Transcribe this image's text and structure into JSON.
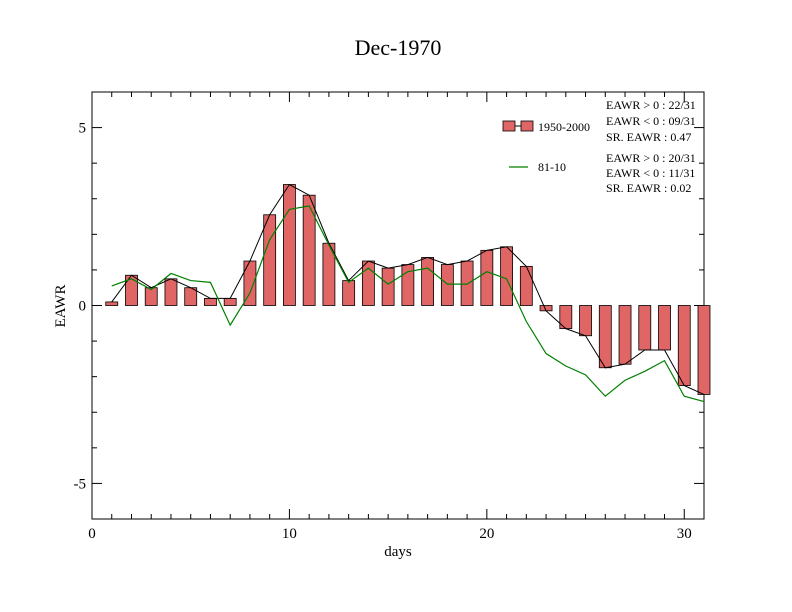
{
  "chart_data": {
    "type": "bar",
    "title": "Dec-1970",
    "xlabel": "days",
    "ylabel": "EAWR",
    "xlim": [
      0,
      31
    ],
    "ylim": [
      -6,
      6
    ],
    "x_ticks": [
      0,
      10,
      20,
      30
    ],
    "y_ticks": [
      -5,
      0,
      5
    ],
    "grid": false,
    "legend_position": "top-right",
    "series": [
      {
        "name": "1950-2000",
        "mark": "bar+line",
        "fill": "#e06666",
        "x": [
          1,
          2,
          3,
          4,
          5,
          6,
          7,
          8,
          9,
          10,
          11,
          12,
          13,
          14,
          15,
          16,
          17,
          18,
          19,
          20,
          21,
          22,
          23,
          24,
          25,
          26,
          27,
          28,
          29,
          30,
          31
        ],
        "values": [
          0.1,
          0.85,
          0.5,
          0.75,
          0.5,
          0.2,
          0.2,
          1.25,
          2.55,
          3.4,
          3.1,
          1.75,
          0.7,
          1.25,
          1.05,
          1.15,
          1.35,
          1.15,
          1.25,
          1.55,
          1.65,
          1.1,
          -0.15,
          -0.65,
          -0.85,
          -1.75,
          -1.65,
          -1.25,
          -1.25,
          -2.25,
          -2.5
        ]
      },
      {
        "name": "81-10",
        "mark": "line",
        "color": "#008000",
        "x": [
          1,
          2,
          3,
          4,
          5,
          6,
          7,
          8,
          9,
          10,
          11,
          12,
          13,
          14,
          15,
          16,
          17,
          18,
          19,
          20,
          21,
          22,
          23,
          24,
          25,
          26,
          27,
          28,
          29,
          30,
          31
        ],
        "values": [
          0.55,
          0.75,
          0.45,
          0.9,
          0.7,
          0.65,
          -0.55,
          0.35,
          1.85,
          2.7,
          2.8,
          1.7,
          0.65,
          1.05,
          0.6,
          0.95,
          1.05,
          0.6,
          0.6,
          0.95,
          0.75,
          -0.45,
          -1.35,
          -1.7,
          -1.95,
          -2.55,
          -2.1,
          -1.85,
          -1.55,
          -2.55,
          -2.7
        ]
      }
    ],
    "stats": [
      [
        "EAWR > 0 : 22/31",
        "EAWR < 0 : 09/31",
        "SR. EAWR :  0.47"
      ],
      [
        "EAWR > 0 : 20/31",
        "EAWR < 0 : 11/31",
        "SR. EAWR :  0.02"
      ]
    ]
  }
}
